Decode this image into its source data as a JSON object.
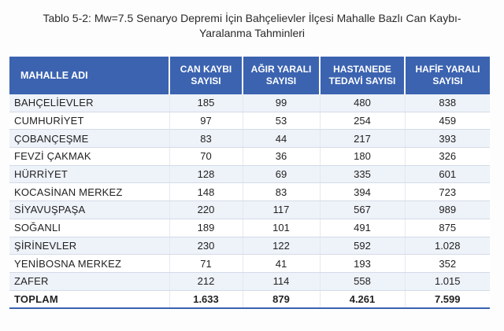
{
  "caption": {
    "line1": "Tablo 5-2: Mw=7.5 Senaryo Depremi İçin Bahçelievler İlçesi Mahalle Bazlı Can Kaybı-",
    "line2": "Yaralanma Tahminleri"
  },
  "table": {
    "headers": {
      "name": "MAHALLE ADI",
      "col1_line1": "CAN KAYBI",
      "col1_line2": "SAYISI",
      "col2_line1": "AĞIR YARALI",
      "col2_line2": "SAYISI",
      "col3_line1": "HASTANEDE",
      "col3_line2": "TEDAVİ SAYISI",
      "col4_line1": "HAFİF YARALI",
      "col4_line2": "SAYISI"
    },
    "rows": [
      {
        "name": "BAHÇELİEVLER",
        "can_kaybi": "185",
        "agir_yarali": "99",
        "hastanede_tedavi": "480",
        "hafif_yarali": "838"
      },
      {
        "name": "CUMHURİYET",
        "can_kaybi": "97",
        "agir_yarali": "53",
        "hastanede_tedavi": "254",
        "hafif_yarali": "459"
      },
      {
        "name": "ÇOBANÇEŞME",
        "can_kaybi": "83",
        "agir_yarali": "44",
        "hastanede_tedavi": "217",
        "hafif_yarali": "393"
      },
      {
        "name": "FEVZİ ÇAKMAK",
        "can_kaybi": "70",
        "agir_yarali": "36",
        "hastanede_tedavi": "180",
        "hafif_yarali": "326"
      },
      {
        "name": "HÜRRİYET",
        "can_kaybi": "128",
        "agir_yarali": "69",
        "hastanede_tedavi": "335",
        "hafif_yarali": "601"
      },
      {
        "name": "KOCASİNAN MERKEZ",
        "can_kaybi": "148",
        "agir_yarali": "83",
        "hastanede_tedavi": "394",
        "hafif_yarali": "723"
      },
      {
        "name": "SİYAVUŞPAŞA",
        "can_kaybi": "220",
        "agir_yarali": "117",
        "hastanede_tedavi": "567",
        "hafif_yarali": "989"
      },
      {
        "name": "SOĞANLI",
        "can_kaybi": "189",
        "agir_yarali": "101",
        "hastanede_tedavi": "491",
        "hafif_yarali": "875"
      },
      {
        "name": "ŞİRİNEVLER",
        "can_kaybi": "230",
        "agir_yarali": "122",
        "hastanede_tedavi": "592",
        "hafif_yarali": "1.028"
      },
      {
        "name": "YENİBOSNA MERKEZ",
        "can_kaybi": "71",
        "agir_yarali": "41",
        "hastanede_tedavi": "193",
        "hafif_yarali": "352"
      },
      {
        "name": "ZAFER",
        "can_kaybi": "212",
        "agir_yarali": "114",
        "hastanede_tedavi": "558",
        "hafif_yarali": "1.015"
      }
    ],
    "total": {
      "name": "TOPLAM",
      "can_kaybi": "1.633",
      "agir_yarali": "879",
      "hastanede_tedavi": "4.261",
      "hafif_yarali": "7.599"
    }
  },
  "colors": {
    "header_bg": "#3b63b0",
    "header_text": "#ffffff",
    "stripe": "#eef2f9"
  }
}
